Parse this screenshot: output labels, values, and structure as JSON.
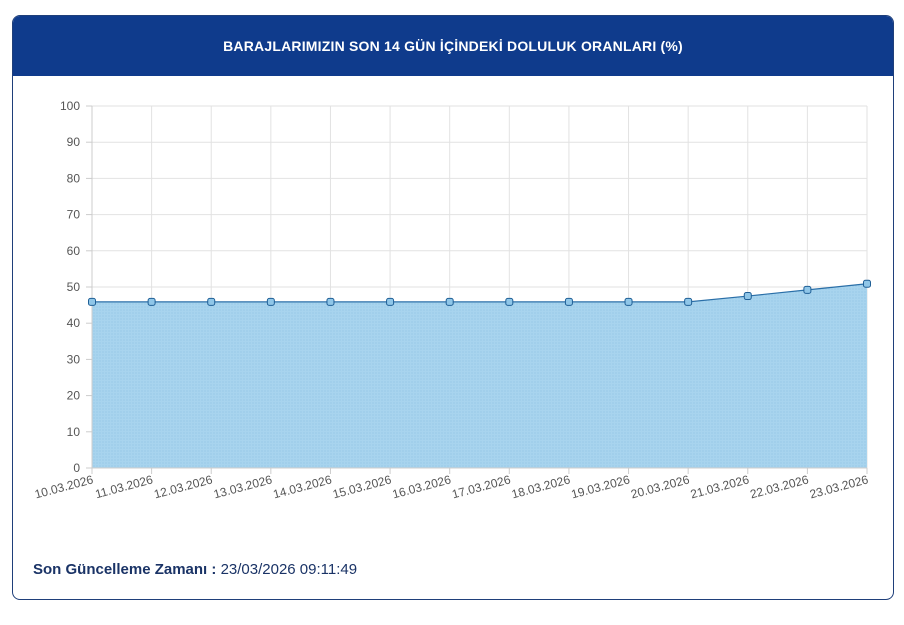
{
  "header": {
    "title": "BARAJLARIMIZIN SON 14 GÜN İÇİNDEKİ DOLULUK ORANLARI (%)"
  },
  "footer": {
    "label": "Son Güncelleme Zamanı :",
    "value": "23/03/2026 09:11:49"
  },
  "colors": {
    "header_bg": "#0f3b8c",
    "line": "#2a6fa8",
    "fill": "#a8d4ee",
    "marker": "#2a6fa8",
    "grid": "#e2e2e2"
  },
  "chart_data": {
    "type": "area",
    "title": "BARAJLARIMIZIN SON 14 GÜN İÇİNDEKİ DOLULUK ORANLARI (%)",
    "xlabel": "",
    "ylabel": "",
    "ylim": [
      0,
      100
    ],
    "yticks": [
      "0",
      "10",
      "20",
      "30",
      "40",
      "50",
      "60",
      "70",
      "80",
      "90",
      "100"
    ],
    "grid": true,
    "categories": [
      "10.03.2026",
      "11.03.2026",
      "12.03.2026",
      "13.03.2026",
      "14.03.2026",
      "15.03.2026",
      "16.03.2026",
      "17.03.2026",
      "18.03.2026",
      "19.03.2026",
      "20.03.2026",
      "21.03.2026",
      "22.03.2026",
      "23.03.2026"
    ],
    "values": [
      45.9,
      45.9,
      45.9,
      45.9,
      45.9,
      45.9,
      45.9,
      45.9,
      45.9,
      45.9,
      45.9,
      47.5,
      49.2,
      50.9
    ]
  }
}
